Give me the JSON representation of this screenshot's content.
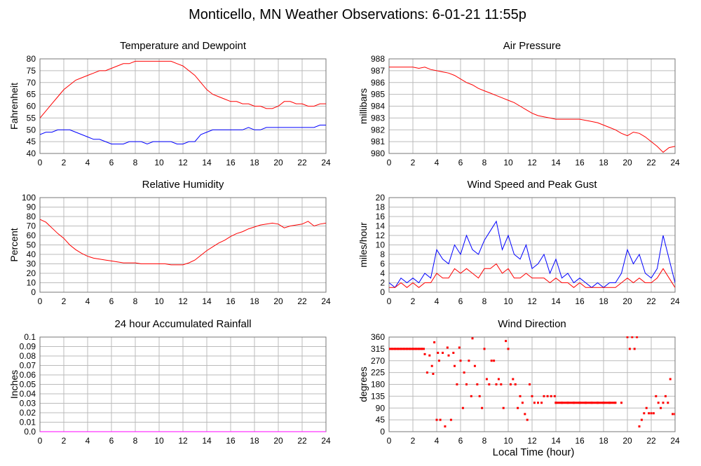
{
  "page": {
    "title": "Monticello, MN Weather Observations: 6-01-21 11:55p",
    "x_axis_label": "Local Time (hour)"
  },
  "colors": {
    "red": "#ff0000",
    "blue": "#0000ff",
    "magenta": "#ff00ff",
    "grid": "#bbbbbb",
    "frame": "#777777"
  },
  "chart_data": [
    {
      "id": "temperature",
      "type": "line",
      "title": "Temperature and Dewpoint",
      "ylabel": "Fahrenheit",
      "xlabel": "",
      "xlim": [
        0,
        24
      ],
      "ylim": [
        40,
        80
      ],
      "yticks": [
        40,
        45,
        50,
        55,
        60,
        65,
        70,
        75,
        80
      ],
      "xticks": [
        0,
        2,
        4,
        6,
        8,
        10,
        12,
        14,
        16,
        18,
        20,
        22,
        24
      ],
      "grid": true,
      "series": [
        {
          "color": "#ff0000",
          "x": [
            0,
            0.5,
            1,
            1.5,
            2,
            2.5,
            3,
            3.5,
            4,
            4.5,
            5,
            5.5,
            6,
            6.5,
            7,
            7.5,
            8,
            8.5,
            9,
            9.5,
            10,
            10.5,
            11,
            11.5,
            12,
            12.5,
            13,
            13.5,
            14,
            14.5,
            15,
            15.5,
            16,
            16.5,
            17,
            17.5,
            18,
            18.5,
            19,
            19.5,
            20,
            20.5,
            21,
            21.5,
            22,
            22.5,
            23,
            23.5,
            24
          ],
          "y": [
            55,
            58,
            61,
            64,
            67,
            69,
            71,
            72,
            73,
            74,
            75,
            75,
            76,
            77,
            78,
            78,
            79,
            79,
            79,
            79,
            79,
            79,
            79,
            78,
            77,
            75,
            73,
            70,
            67,
            65,
            64,
            63,
            62,
            62,
            61,
            61,
            60,
            60,
            59,
            59,
            60,
            62,
            62,
            61,
            61,
            60,
            60,
            61,
            61
          ]
        },
        {
          "color": "#0000ff",
          "x": [
            0,
            0.5,
            1,
            1.5,
            2,
            2.5,
            3,
            3.5,
            4,
            4.5,
            5,
            5.5,
            6,
            6.5,
            7,
            7.5,
            8,
            8.5,
            9,
            9.5,
            10,
            10.5,
            11,
            11.5,
            12,
            12.5,
            13,
            13.5,
            14,
            14.5,
            15,
            15.5,
            16,
            16.5,
            17,
            17.5,
            18,
            18.5,
            19,
            19.5,
            20,
            20.5,
            21,
            21.5,
            22,
            22.5,
            23,
            23.5,
            24
          ],
          "y": [
            48,
            49,
            49,
            50,
            50,
            50,
            49,
            48,
            47,
            46,
            46,
            45,
            44,
            44,
            44,
            45,
            45,
            45,
            44,
            45,
            45,
            45,
            45,
            44,
            44,
            45,
            45,
            48,
            49,
            50,
            50,
            50,
            50,
            50,
            50,
            51,
            50,
            50,
            51,
            51,
            51,
            51,
            51,
            51,
            51,
            51,
            51,
            52,
            52
          ]
        }
      ]
    },
    {
      "id": "pressure",
      "type": "line",
      "title": "Air Pressure",
      "ylabel": "millibars",
      "xlabel": "",
      "xlim": [
        0,
        24
      ],
      "ylim": [
        980,
        988
      ],
      "yticks": [
        980,
        981,
        982,
        983,
        984,
        985,
        986,
        987,
        988
      ],
      "xticks": [
        0,
        2,
        4,
        6,
        8,
        10,
        12,
        14,
        16,
        18,
        20,
        22,
        24
      ],
      "grid": true,
      "series": [
        {
          "color": "#ff0000",
          "x": [
            0,
            0.5,
            1,
            1.5,
            2,
            2.5,
            3,
            3.5,
            4,
            4.5,
            5,
            5.5,
            6,
            6.5,
            7,
            7.5,
            8,
            8.5,
            9,
            9.5,
            10,
            10.5,
            11,
            11.5,
            12,
            12.5,
            13,
            13.5,
            14,
            14.5,
            15,
            15.5,
            16,
            16.5,
            17,
            17.5,
            18,
            18.5,
            19,
            19.5,
            20,
            20.5,
            21,
            21.5,
            22,
            22.5,
            23,
            23.5,
            24
          ],
          "y": [
            987.3,
            987.3,
            987.3,
            987.3,
            987.3,
            987.2,
            987.3,
            987.1,
            987,
            986.9,
            986.8,
            986.6,
            986.3,
            986,
            985.8,
            985.5,
            985.3,
            985.1,
            984.9,
            984.7,
            984.5,
            984.3,
            984,
            983.7,
            983.4,
            983.2,
            983.1,
            983,
            982.9,
            982.9,
            982.9,
            982.9,
            982.9,
            982.8,
            982.7,
            982.6,
            982.4,
            982.2,
            982,
            981.7,
            981.5,
            981.8,
            981.7,
            981.4,
            981,
            980.6,
            980.1,
            980.5,
            980.6
          ]
        }
      ]
    },
    {
      "id": "humidity",
      "type": "line",
      "title": "Relative Humidity",
      "ylabel": "Percent",
      "xlabel": "",
      "xlim": [
        0,
        24
      ],
      "ylim": [
        0,
        100
      ],
      "yticks": [
        0,
        10,
        20,
        30,
        40,
        50,
        60,
        70,
        80,
        90,
        100
      ],
      "xticks": [
        0,
        2,
        4,
        6,
        8,
        10,
        12,
        14,
        16,
        18,
        20,
        22,
        24
      ],
      "grid": true,
      "series": [
        {
          "color": "#ff0000",
          "x": [
            0,
            0.5,
            1,
            1.5,
            2,
            2.5,
            3,
            3.5,
            4,
            4.5,
            5,
            5.5,
            6,
            6.5,
            7,
            7.5,
            8,
            8.5,
            9,
            9.5,
            10,
            10.5,
            11,
            11.5,
            12,
            12.5,
            13,
            13.5,
            14,
            14.5,
            15,
            15.5,
            16,
            16.5,
            17,
            17.5,
            18,
            18.5,
            19,
            19.5,
            20,
            20.5,
            21,
            21.5,
            22,
            22.5,
            23,
            23.5,
            24
          ],
          "y": [
            77,
            74,
            68,
            62,
            57,
            50,
            45,
            41,
            38,
            36,
            35,
            34,
            33,
            32,
            31,
            31,
            31,
            30,
            30,
            30,
            30,
            30,
            29,
            29,
            29,
            31,
            34,
            39,
            44,
            48,
            52,
            55,
            59,
            62,
            64,
            67,
            69,
            71,
            72,
            73,
            72,
            68,
            70,
            71,
            72,
            75,
            70,
            72,
            73
          ]
        }
      ]
    },
    {
      "id": "wind-speed",
      "type": "line",
      "title": "Wind Speed and Peak Gust",
      "ylabel": "miles/hour",
      "xlabel": "",
      "xlim": [
        0,
        24
      ],
      "ylim": [
        0,
        20
      ],
      "yticks": [
        0,
        2,
        4,
        6,
        8,
        10,
        12,
        14,
        16,
        18,
        20
      ],
      "xticks": [
        0,
        2,
        4,
        6,
        8,
        10,
        12,
        14,
        16,
        18,
        20,
        22,
        24
      ],
      "grid": true,
      "series": [
        {
          "color": "#0000ff",
          "x": [
            0,
            0.5,
            1,
            1.5,
            2,
            2.5,
            3,
            3.5,
            4,
            4.5,
            5,
            5.5,
            6,
            6.5,
            7,
            7.5,
            8,
            8.5,
            9,
            9.5,
            10,
            10.5,
            11,
            11.5,
            12,
            12.5,
            13,
            13.5,
            14,
            14.5,
            15,
            15.5,
            16,
            16.5,
            17,
            17.5,
            18,
            18.5,
            19,
            19.5,
            20,
            20.5,
            21,
            21.5,
            22,
            22.5,
            23,
            23.5,
            24
          ],
          "y": [
            2,
            1,
            3,
            2,
            3,
            2,
            4,
            3,
            9,
            7,
            6,
            10,
            8,
            12,
            9,
            8,
            11,
            13,
            15,
            9,
            12,
            8,
            7,
            10,
            5,
            6,
            8,
            4,
            7,
            3,
            4,
            2,
            3,
            2,
            1,
            2,
            1,
            2,
            2,
            4,
            9,
            6,
            8,
            4,
            3,
            5,
            12,
            7,
            2
          ]
        },
        {
          "color": "#ff0000",
          "x": [
            0,
            0.5,
            1,
            1.5,
            2,
            2.5,
            3,
            3.5,
            4,
            4.5,
            5,
            5.5,
            6,
            6.5,
            7,
            7.5,
            8,
            8.5,
            9,
            9.5,
            10,
            10.5,
            11,
            11.5,
            12,
            12.5,
            13,
            13.5,
            14,
            14.5,
            15,
            15.5,
            16,
            16.5,
            17,
            17.5,
            18,
            18.5,
            19,
            19.5,
            20,
            20.5,
            21,
            21.5,
            22,
            22.5,
            23,
            23.5,
            24
          ],
          "y": [
            1,
            1,
            2,
            1,
            2,
            1,
            2,
            2,
            4,
            3,
            3,
            5,
            4,
            5,
            4,
            3,
            5,
            5,
            6,
            4,
            5,
            3,
            3,
            4,
            3,
            3,
            3,
            2,
            3,
            2,
            2,
            1,
            2,
            1,
            1,
            1,
            1,
            1,
            1,
            2,
            3,
            2,
            3,
            2,
            2,
            3,
            5,
            3,
            1
          ]
        }
      ]
    },
    {
      "id": "rainfall",
      "type": "line",
      "title": "24 hour Accumulated Rainfall",
      "ylabel": "Inches",
      "xlabel": "",
      "xlim": [
        0,
        24
      ],
      "ylim": [
        0,
        0.1
      ],
      "yticks": [
        0.0,
        0.01,
        0.02,
        0.03,
        0.04,
        0.05,
        0.06,
        0.07,
        0.08,
        0.09,
        0.1
      ],
      "ytick_labels": [
        "0.0",
        "0.01",
        "0.02",
        "0.03",
        "0.04",
        "0.05",
        "0.06",
        "0.07",
        "0.08",
        "0.09",
        "0.1"
      ],
      "xticks": [
        0,
        2,
        4,
        6,
        8,
        10,
        12,
        14,
        16,
        18,
        20,
        22,
        24
      ],
      "grid": true,
      "series": [
        {
          "color": "#ff00ff",
          "x": [
            0,
            24
          ],
          "y": [
            0,
            0
          ]
        }
      ]
    },
    {
      "id": "wind-direction",
      "type": "scatter",
      "title": "Wind Direction",
      "ylabel": "degrees",
      "xlabel": "Local Time (hour)",
      "xlim": [
        0,
        24
      ],
      "ylim": [
        0,
        360
      ],
      "yticks": [
        0,
        45,
        90,
        135,
        180,
        225,
        270,
        315,
        360
      ],
      "xticks": [
        0,
        2,
        4,
        6,
        8,
        10,
        12,
        14,
        16,
        18,
        20,
        22,
        24
      ],
      "grid": true,
      "series": [
        {
          "color": "#ff0000",
          "x": [
            0,
            0.25,
            0.5,
            0.75,
            1,
            1.25,
            1.5,
            1.75,
            2,
            2.25,
            2.5,
            2.75,
            3.0,
            3.2,
            3.4,
            3.6,
            3.7,
            3.8,
            4.0,
            4.1,
            4.2,
            4.3,
            4.5,
            4.7,
            4.9,
            5.0,
            5.2,
            5.4,
            5.5,
            5.7,
            5.9,
            6.0,
            6.2,
            6.3,
            6.5,
            6.7,
            6.9,
            7.0,
            7.2,
            7.4,
            7.6,
            7.8,
            8.0,
            8.2,
            8.4,
            8.6,
            8.8,
            9.0,
            9.2,
            9.4,
            9.6,
            9.8,
            10.0,
            10.2,
            10.4,
            10.6,
            10.8,
            11.0,
            11.2,
            11.4,
            11.6,
            11.8,
            12.0,
            12.2,
            12.5,
            12.8,
            13.0,
            13.3,
            13.6,
            13.9,
            14.0,
            14.5,
            15.0,
            15.5,
            16.0,
            16.5,
            17.0,
            17.5,
            18.0,
            18.5,
            19.0,
            19.5,
            20.0,
            20.2,
            20.4,
            20.6,
            20.8,
            21.0,
            21.2,
            21.4,
            21.6,
            21.8,
            22.0,
            22.2,
            22.4,
            22.6,
            22.8,
            23.0,
            23.2,
            23.4,
            23.6,
            23.8,
            24.0
          ],
          "y": [
            315,
            315,
            315,
            315,
            315,
            315,
            315,
            315,
            315,
            315,
            315,
            315,
            295,
            225,
            290,
            250,
            220,
            340,
            45,
            300,
            270,
            45,
            300,
            20,
            320,
            290,
            45,
            300,
            250,
            180,
            320,
            270,
            90,
            225,
            180,
            270,
            135,
            355,
            250,
            180,
            135,
            90,
            315,
            200,
            180,
            270,
            270,
            180,
            200,
            180,
            90,
            345,
            315,
            180,
            200,
            180,
            90,
            135,
            110,
            67,
            45,
            180,
            135,
            110,
            110,
            110,
            135,
            135,
            135,
            135,
            110,
            110,
            110,
            110,
            110,
            110,
            110,
            110,
            110,
            110,
            110,
            110,
            360,
            315,
            360,
            315,
            360,
            20,
            45,
            70,
            90,
            70,
            70,
            70,
            135,
            110,
            90,
            110,
            135,
            110,
            200,
            67,
            67
          ]
        }
      ]
    }
  ]
}
